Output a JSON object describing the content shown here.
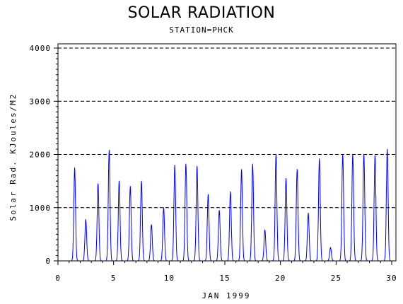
{
  "chart_data": {
    "type": "line",
    "title": "SOLAR RADIATION",
    "subtitle": "STATION=PHCK",
    "xlabel": "JAN 1999",
    "ylabel": "Solar Rad. KJoules/M2",
    "xlim": [
      0,
      30.6
    ],
    "ylim": [
      0,
      4000
    ],
    "x_ticks": [
      0,
      5,
      10,
      15,
      20,
      25,
      30
    ],
    "y_ticks": [
      0,
      1000,
      2000,
      3000,
      4000
    ],
    "grid": "horizontal dashed at 1000, 2000, 3000, 4000",
    "series": [
      {
        "color": "#0000ff",
        "daily_peaks": [
          {
            "day": 1.5,
            "value": 1750
          },
          {
            "day": 2.5,
            "value": 780
          },
          {
            "day": 3.6,
            "value": 1450
          },
          {
            "day": 4.6,
            "value": 2080
          },
          {
            "day": 5.5,
            "value": 1500
          },
          {
            "day": 6.5,
            "value": 1400
          },
          {
            "day": 7.5,
            "value": 1500
          },
          {
            "day": 8.4,
            "value": 680
          },
          {
            "day": 9.5,
            "value": 1000
          },
          {
            "day": 10.5,
            "value": 1800
          },
          {
            "day": 11.5,
            "value": 1820
          },
          {
            "day": 12.5,
            "value": 1780
          },
          {
            "day": 13.5,
            "value": 1250
          },
          {
            "day": 14.5,
            "value": 950
          },
          {
            "day": 15.5,
            "value": 1300
          },
          {
            "day": 16.5,
            "value": 1720
          },
          {
            "day": 17.5,
            "value": 1820
          },
          {
            "day": 18.6,
            "value": 580
          },
          {
            "day": 19.6,
            "value": 2000
          },
          {
            "day": 20.5,
            "value": 1550
          },
          {
            "day": 21.5,
            "value": 1720
          },
          {
            "day": 22.5,
            "value": 900
          },
          {
            "day": 23.5,
            "value": 1920
          },
          {
            "day": 24.5,
            "value": 250
          },
          {
            "day": 25.6,
            "value": 2000
          },
          {
            "day": 26.5,
            "value": 2000
          },
          {
            "day": 27.5,
            "value": 2000
          },
          {
            "day": 28.5,
            "value": 1980
          },
          {
            "day": 29.6,
            "value": 2100
          }
        ]
      }
    ]
  }
}
